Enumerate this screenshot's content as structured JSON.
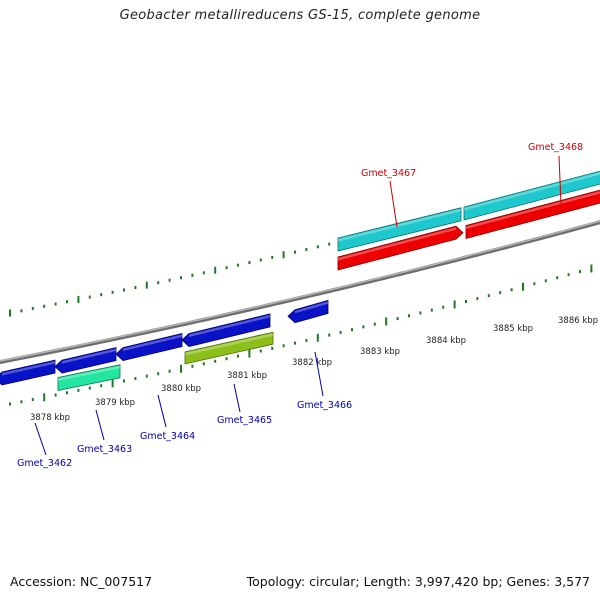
{
  "header": {
    "title": "Geobacter metallireducens GS-15, complete genome"
  },
  "footer": {
    "accession": "Accession: NC_007517",
    "summary": "Topology: circular; Length: 3,997,420 bp; Genes: 3,577"
  },
  "colors": {
    "backbone": "#8a8a8a",
    "tick": "#1e7a1e",
    "reverse_label": "#0000aa",
    "forward_label": "#cc0000",
    "gene_blue": "#0a12c8",
    "gene_cyan": "#1ec8cc",
    "gene_red": "#ee0000",
    "gene_teal": "#22e6a0",
    "gene_olive": "#8cbf1a"
  },
  "scale_labels": [
    "3878 kbp",
    "3879 kbp",
    "3880 kbp",
    "3881 kbp",
    "3882 kbp",
    "3883 kbp",
    "3884 kbp",
    "3885 kbp",
    "3886 kbp"
  ],
  "genes": [
    {
      "name": "Gmet_3462",
      "strand": "reverse"
    },
    {
      "name": "Gmet_3463",
      "strand": "reverse"
    },
    {
      "name": "Gmet_3464",
      "strand": "reverse"
    },
    {
      "name": "Gmet_3465",
      "strand": "reverse"
    },
    {
      "name": "Gmet_3466",
      "strand": "reverse"
    },
    {
      "name": "Gmet_3467",
      "strand": "forward"
    },
    {
      "name": "Gmet_3468",
      "strand": "forward"
    }
  ]
}
